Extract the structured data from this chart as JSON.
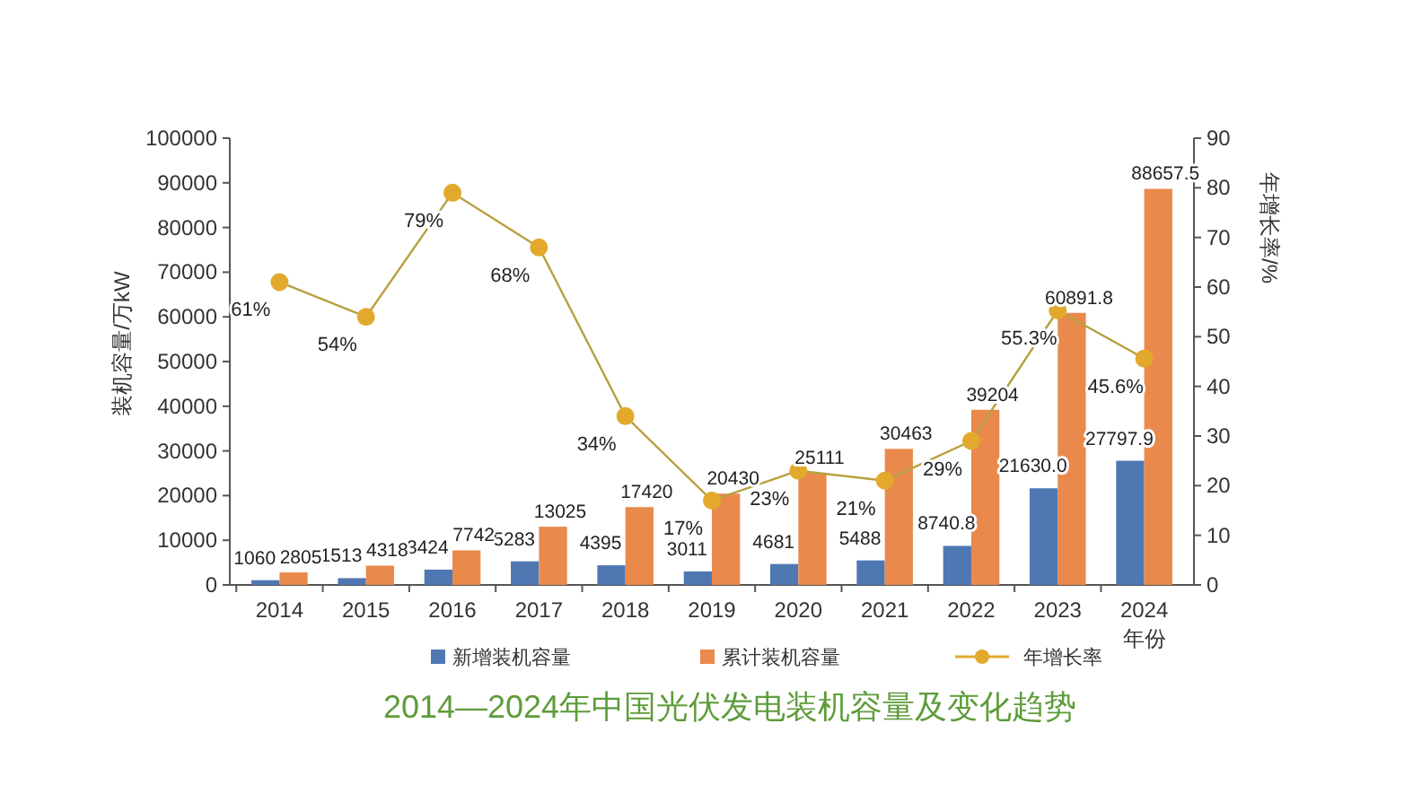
{
  "chart_data": {
    "type": "bar",
    "title": "2014—2024年中国光伏发电装机容量及变化趋势",
    "xlabel": "年份",
    "ylabel": "装机容量/万kW",
    "y2label": "年增长率/%",
    "categories": [
      "2014",
      "2015",
      "2016",
      "2017",
      "2018",
      "2019",
      "2020",
      "2021",
      "2022",
      "2023",
      "2024"
    ],
    "series": [
      {
        "name": "新增装机容量",
        "color": "#4f78b3",
        "values": [
          1060,
          1513,
          3424,
          5283,
          4395,
          3011,
          4681,
          5488,
          8740.8,
          21630.0,
          27797.9
        ],
        "value_labels": [
          "1060",
          "1513",
          "3424",
          "5283",
          "4395",
          "3011",
          "4681",
          "5488",
          "8740.8",
          "21630.0",
          "27797.9"
        ]
      },
      {
        "name": "累计装机容量",
        "color": "#e98a4c",
        "values": [
          2805,
          4318,
          7742,
          13025,
          17420,
          20430,
          25111,
          30463,
          39204,
          60891.8,
          88657.5
        ],
        "value_labels": [
          "2805",
          "4318",
          "7742",
          "13025",
          "17420",
          "20430",
          "25111",
          "30463",
          "39204",
          "60891.8",
          "88657.5"
        ]
      },
      {
        "name": "年增长率",
        "type": "line",
        "axis": "y2",
        "color": "#e3a92c",
        "marker": "circle",
        "values": [
          61,
          54,
          79,
          68,
          34,
          17,
          23,
          21,
          29,
          55.3,
          45.6
        ],
        "value_labels": [
          "61%",
          "54%",
          "79%",
          "68%",
          "34%",
          "17%",
          "23%",
          "21%",
          "29%",
          "55.3%",
          "45.6%"
        ]
      }
    ],
    "ylim": [
      0,
      100000
    ],
    "yticks": [
      0,
      10000,
      20000,
      30000,
      40000,
      50000,
      60000,
      70000,
      80000,
      90000,
      100000
    ],
    "y2lim": [
      0,
      90
    ],
    "y2ticks": [
      0,
      10,
      20,
      30,
      40,
      50,
      60,
      70,
      80,
      90
    ],
    "grid": false,
    "legend": "bottom"
  }
}
